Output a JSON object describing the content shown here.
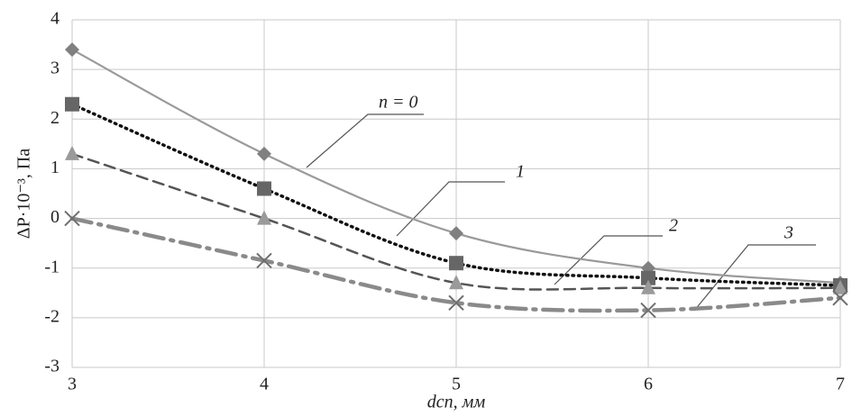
{
  "chart_data": {
    "type": "line",
    "xlabel": "dсп, мм",
    "ylabel": "ΔP·10⁻³, Па",
    "x": [
      3,
      4,
      5,
      6,
      7
    ],
    "xlim": [
      3,
      7
    ],
    "xticks": [
      3,
      4,
      5,
      6,
      7
    ],
    "ylim": [
      -3,
      4
    ],
    "yticks": [
      -3,
      -2,
      -1,
      0,
      1,
      2,
      3,
      4
    ],
    "grid": true,
    "series": [
      {
        "name": "n = 0",
        "color": "#808080",
        "line_color": "#9a9a9a",
        "dash": "solid",
        "marker": "diamond",
        "values": [
          3.4,
          1.3,
          -0.3,
          -1.0,
          -1.3
        ]
      },
      {
        "name": "1",
        "color": "#666666",
        "line_color": "#111111",
        "dash": "dotted",
        "marker": "square",
        "values": [
          2.3,
          0.6,
          -0.9,
          -1.2,
          -1.35
        ]
      },
      {
        "name": "2",
        "color": "#9a9a9a",
        "line_color": "#555555",
        "dash": "dashed",
        "marker": "triangle",
        "values": [
          1.3,
          0.0,
          -1.3,
          -1.4,
          -1.4
        ]
      },
      {
        "name": "3",
        "color": "#6e6e6e",
        "line_color": "#8a8a8a",
        "dash": "dashdot",
        "marker": "x",
        "values": [
          0.0,
          -0.85,
          -1.7,
          -1.85,
          -1.6
        ]
      }
    ]
  }
}
